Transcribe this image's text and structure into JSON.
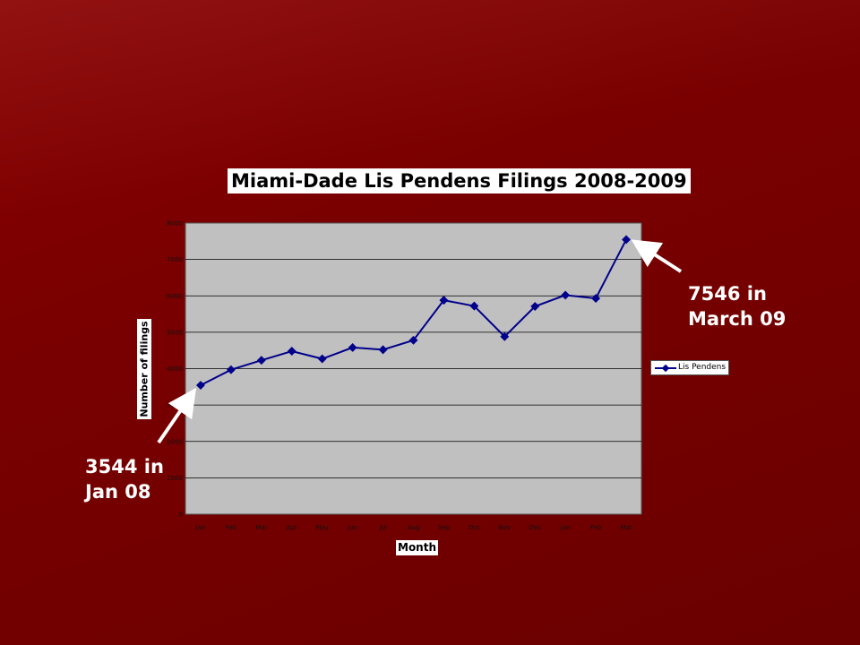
{
  "chart_data": {
    "type": "line",
    "title": "Miami-Dade Lis Pendens Filings 2008-2009",
    "xlabel": "Month",
    "ylabel": "Number of filings",
    "categories": [
      "Jan",
      "Feb",
      "Mar",
      "Apr",
      "May",
      "Jun",
      "Jul",
      "Aug",
      "Sep",
      "Oct",
      "Nov",
      "Dec",
      "Jan",
      "Feb",
      "Mar"
    ],
    "series": [
      {
        "name": "Lis Pendens",
        "color": "#00008b",
        "values": [
          3544,
          3970,
          4230,
          4480,
          4270,
          4580,
          4520,
          4780,
          5880,
          5720,
          4880,
          5710,
          6020,
          5930,
          7546
        ]
      }
    ],
    "ylim": [
      0,
      8000
    ],
    "yticks": [
      "0",
      "1000",
      "2000",
      "3000",
      "4000",
      "5000",
      "6000",
      "7000",
      "8000"
    ],
    "grid": true,
    "legend": "right",
    "plot_background": "#c0c0c0"
  },
  "callouts": {
    "high": "7546 in\nMarch 09",
    "low": "3544 in\nJan 08"
  }
}
